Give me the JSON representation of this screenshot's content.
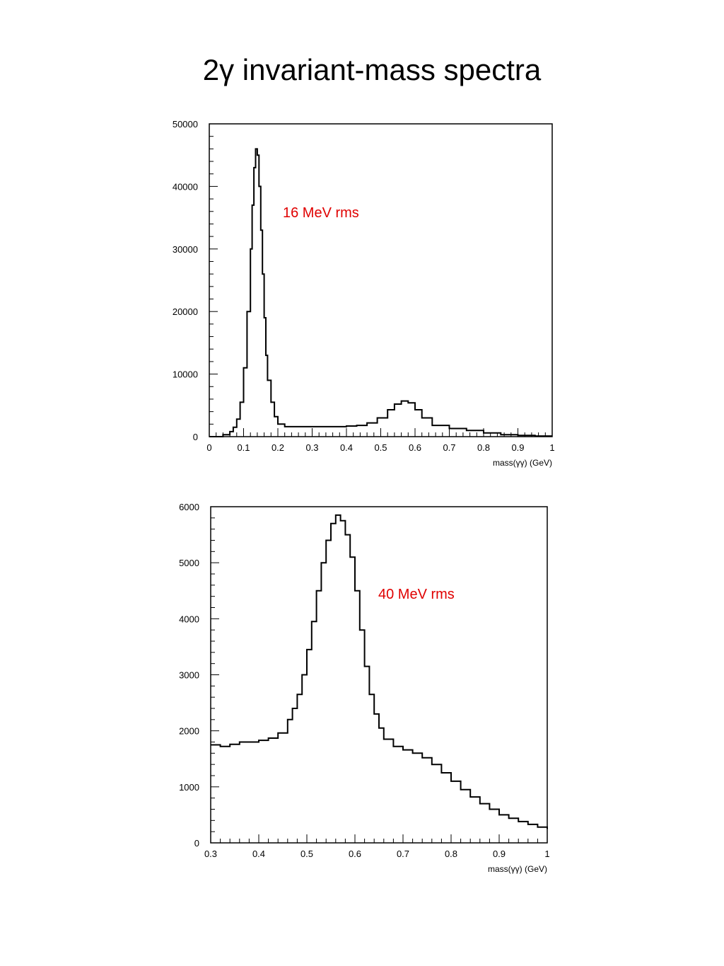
{
  "page": {
    "title": "2γ invariant-mass spectra"
  },
  "chart_data": [
    {
      "type": "line",
      "xlabel": "mass(γγ) (GeV)",
      "ylabel": "",
      "xlim": [
        0,
        1
      ],
      "ylim": [
        0,
        50000
      ],
      "xticks": [
        0,
        0.1,
        0.2,
        0.3,
        0.4,
        0.5,
        0.6,
        0.7,
        0.8,
        0.9,
        1
      ],
      "xtick_labels": [
        "0",
        "0.1",
        "0.2",
        "0.3",
        "0.4",
        "0.5",
        "0.6",
        "0.7",
        "0.8",
        "0.9",
        "1"
      ],
      "yticks": [
        0,
        10000,
        20000,
        30000,
        40000,
        50000
      ],
      "ytick_labels": [
        "0",
        "10000",
        "20000",
        "30000",
        "40000",
        "50000"
      ],
      "annotation": "16 MeV rms",
      "annotation_color": "#e00000",
      "grid": false,
      "series": [
        {
          "x": [
            0.0,
            0.02,
            0.04,
            0.06,
            0.07,
            0.08,
            0.09,
            0.1,
            0.11,
            0.12,
            0.125,
            0.13,
            0.135,
            0.14,
            0.145,
            0.15,
            0.155,
            0.16,
            0.165,
            0.17,
            0.18,
            0.19,
            0.2,
            0.22,
            0.25,
            0.3,
            0.35,
            0.4,
            0.43,
            0.46,
            0.49,
            0.52,
            0.54,
            0.56,
            0.58,
            0.6,
            0.62,
            0.65,
            0.7,
            0.75,
            0.8,
            0.85,
            0.9,
            0.95,
            1.0
          ],
          "y": [
            0,
            0,
            300,
            800,
            1500,
            2800,
            5500,
            11000,
            20000,
            30000,
            37000,
            43000,
            46000,
            45000,
            40000,
            33000,
            26000,
            19000,
            13000,
            9000,
            5500,
            3200,
            2000,
            1600,
            1600,
            1600,
            1600,
            1700,
            1800,
            2200,
            3000,
            4300,
            5200,
            5700,
            5400,
            4300,
            3000,
            1800,
            1300,
            1000,
            600,
            300,
            200,
            100,
            100
          ]
        }
      ]
    },
    {
      "type": "line",
      "xlabel": "mass(γγ) (GeV)",
      "ylabel": "",
      "xlim": [
        0.3,
        1
      ],
      "ylim": [
        0,
        6000
      ],
      "xticks": [
        0.3,
        0.4,
        0.5,
        0.6,
        0.7,
        0.8,
        0.9,
        1
      ],
      "xtick_labels": [
        "0.3",
        "0.4",
        "0.5",
        "0.6",
        "0.7",
        "0.8",
        "0.9",
        "1"
      ],
      "yticks": [
        0,
        1000,
        2000,
        3000,
        4000,
        5000,
        6000
      ],
      "ytick_labels": [
        "0",
        "1000",
        "2000",
        "3000",
        "4000",
        "5000",
        "6000"
      ],
      "annotation": "40 MeV rms",
      "annotation_color": "#e00000",
      "grid": false,
      "series": [
        {
          "x": [
            0.3,
            0.32,
            0.34,
            0.36,
            0.38,
            0.4,
            0.42,
            0.44,
            0.46,
            0.47,
            0.48,
            0.49,
            0.5,
            0.51,
            0.52,
            0.53,
            0.54,
            0.55,
            0.56,
            0.57,
            0.58,
            0.59,
            0.6,
            0.61,
            0.62,
            0.63,
            0.64,
            0.65,
            0.66,
            0.68,
            0.7,
            0.72,
            0.74,
            0.76,
            0.78,
            0.8,
            0.82,
            0.84,
            0.86,
            0.88,
            0.9,
            0.92,
            0.94,
            0.96,
            0.98,
            1.0
          ],
          "y": [
            1750,
            1720,
            1760,
            1800,
            1800,
            1830,
            1870,
            1960,
            2200,
            2400,
            2650,
            3000,
            3450,
            3950,
            4500,
            5000,
            5400,
            5700,
            5850,
            5750,
            5500,
            5100,
            4500,
            3800,
            3150,
            2650,
            2300,
            2050,
            1850,
            1720,
            1660,
            1600,
            1520,
            1400,
            1250,
            1100,
            950,
            820,
            700,
            600,
            500,
            440,
            380,
            330,
            280,
            250
          ]
        }
      ]
    }
  ]
}
